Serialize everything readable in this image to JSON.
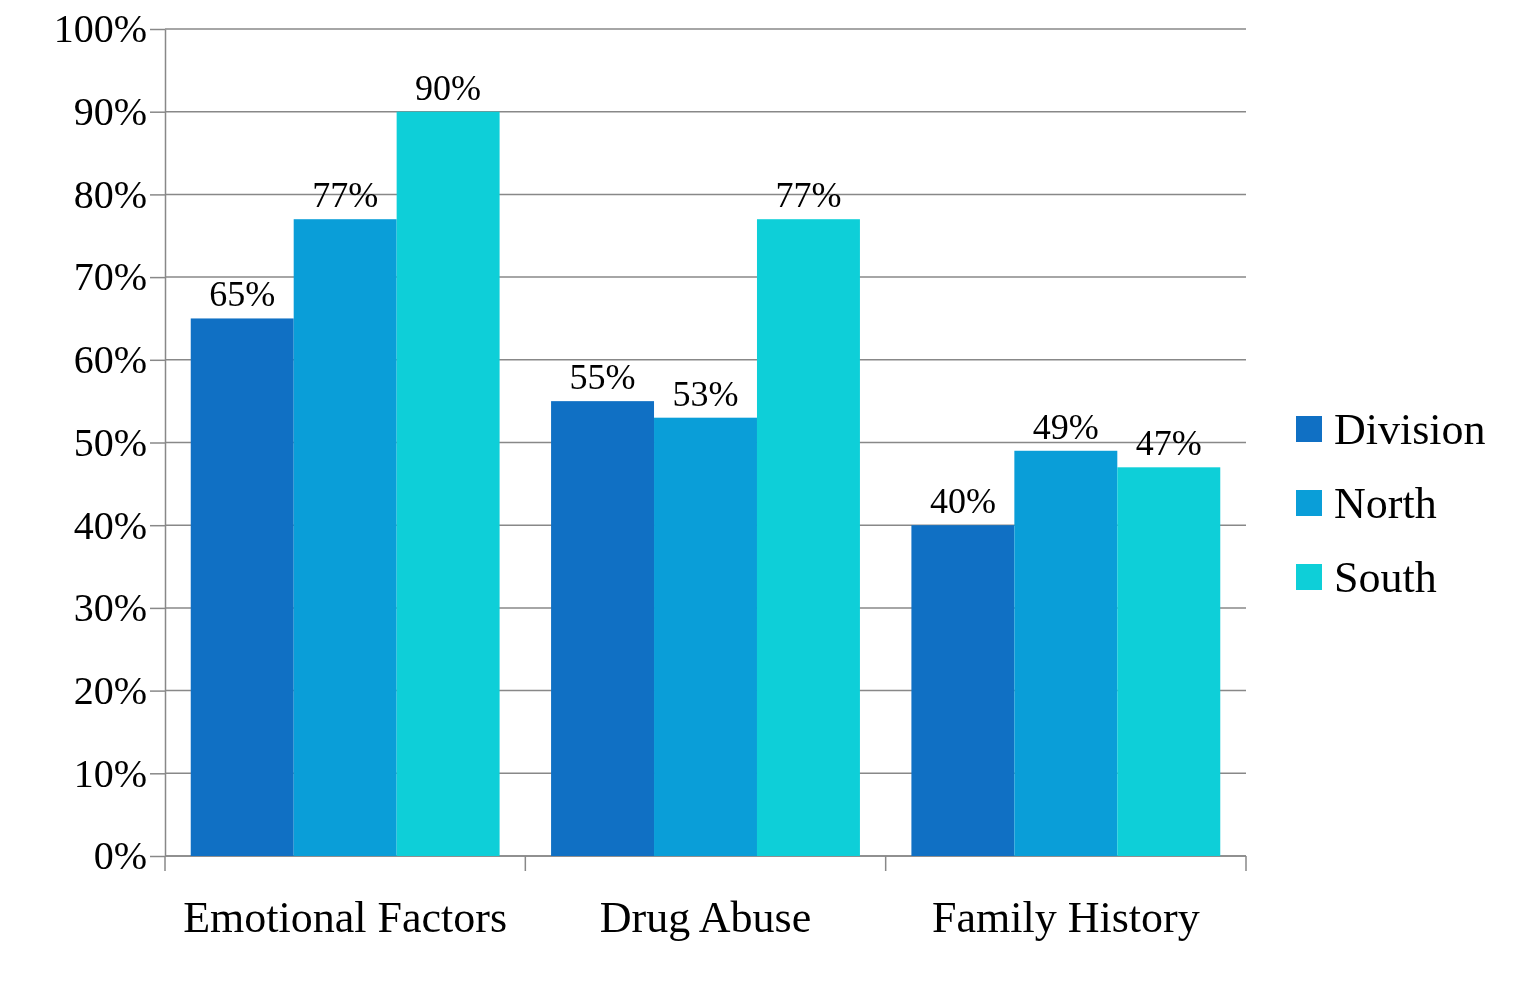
{
  "chart_data": {
    "type": "bar",
    "categories": [
      "Emotional Factors",
      "Drug Abuse",
      "Family History"
    ],
    "series": [
      {
        "name": "Division",
        "color": "#1070c4",
        "values": [
          65,
          55,
          40
        ],
        "value_labels": [
          "65%",
          "55%",
          "40%"
        ]
      },
      {
        "name": "North",
        "color": "#0a9ed8",
        "values": [
          77,
          53,
          49
        ],
        "value_labels": [
          "77%",
          "53%",
          "49%"
        ]
      },
      {
        "name": "South",
        "color": "#0ecfd8",
        "values": [
          90,
          77,
          47
        ],
        "value_labels": [
          "90%",
          "77%",
          "47%"
        ]
      }
    ],
    "ylim": [
      0,
      100
    ],
    "yticks": [
      {
        "value": 0,
        "label": "0%"
      },
      {
        "value": 10,
        "label": "10%"
      },
      {
        "value": 20,
        "label": "20%"
      },
      {
        "value": 30,
        "label": "30%"
      },
      {
        "value": 40,
        "label": "40%"
      },
      {
        "value": 50,
        "label": "50%"
      },
      {
        "value": 60,
        "label": "60%"
      },
      {
        "value": 70,
        "label": "70%"
      },
      {
        "value": 80,
        "label": "80%"
      },
      {
        "value": 90,
        "label": "90%"
      },
      {
        "value": 100,
        "label": "100%"
      }
    ],
    "grid": "y",
    "legend": "right"
  }
}
